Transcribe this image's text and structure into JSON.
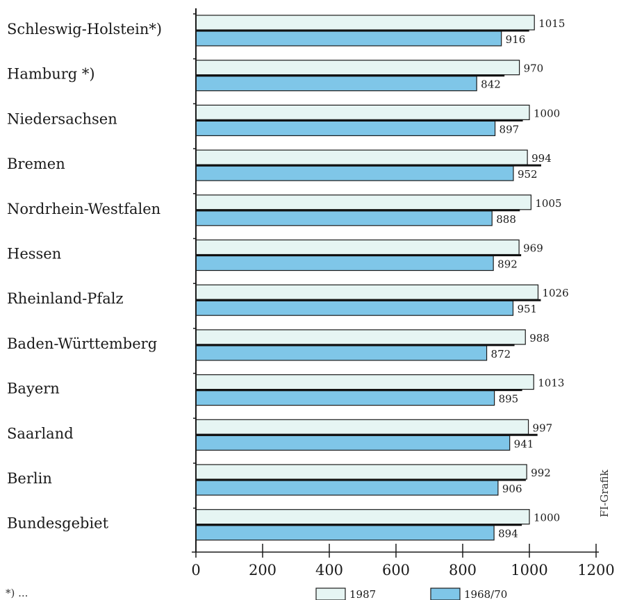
{
  "chart_data": {
    "type": "bar",
    "orientation": "horizontal",
    "categories": [
      "Schleswig-Holstein*)",
      "Hamburg *)",
      "Niedersachsen",
      "Bremen",
      "Nordrhein-Westfalen",
      "Hessen",
      "Rheinland-Pfalz",
      "Baden-Württemberg",
      "Bayern",
      "Saarland",
      "Berlin",
      "Bundesgebiet"
    ],
    "series": [
      {
        "name": "1987",
        "color": "#e6f5f3",
        "values": [
          1015,
          970,
          1000,
          994,
          1005,
          969,
          1026,
          988,
          1013,
          997,
          992,
          1000
        ]
      },
      {
        "name": "1968/70",
        "color": "#7fc6e8",
        "values": [
          916,
          842,
          897,
          952,
          888,
          892,
          951,
          872,
          895,
          941,
          906,
          894
        ]
      }
    ],
    "value_labels": [
      [
        "1015",
        "970",
        "1000",
        "994",
        "1005",
        "969",
        "1026",
        "988",
        "1013",
        "997",
        "992",
        "1000"
      ],
      [
        "916",
        "842",
        "897",
        "952",
        "888",
        "892",
        "951",
        "872",
        "895",
        "941",
        "906",
        "894"
      ]
    ],
    "xlim": [
      0,
      1200
    ],
    "xticks": [
      0,
      200,
      400,
      600,
      800,
      1000,
      1200
    ],
    "xtick_labels": [
      "0",
      "200",
      "400",
      "600",
      "800",
      "1000",
      "1200"
    ],
    "grid": false,
    "legend_position": "bottom-right",
    "credit": "FI-Grafik",
    "footnote": "*) ..."
  },
  "colors": {
    "bar_outline": "#1a1a1a",
    "divider": "#111111",
    "axis": "#1a1a1a",
    "text": "#1a1a1a"
  }
}
